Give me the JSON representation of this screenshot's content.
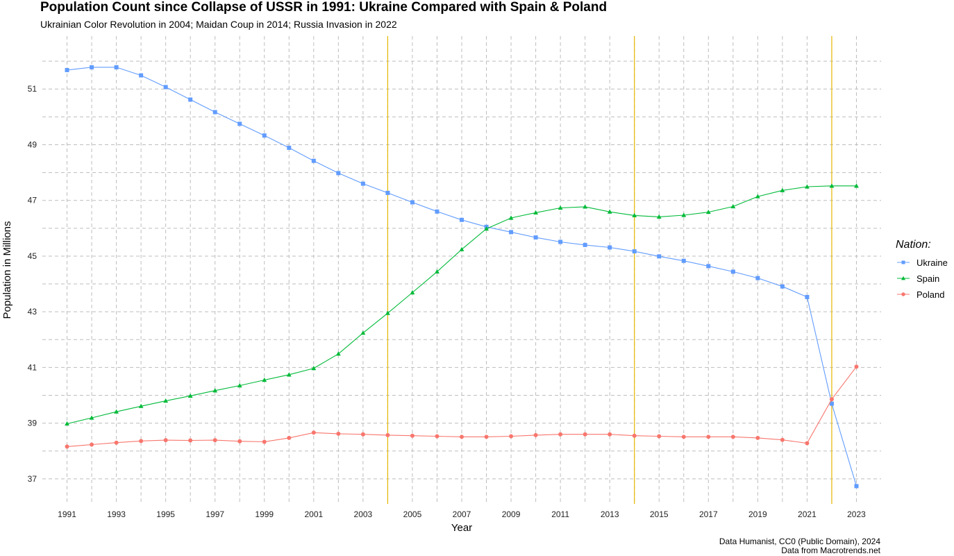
{
  "chart_data": {
    "type": "line",
    "title": "Population Count since Collapse of USSR in 1991: Ukraine Compared with Spain & Poland",
    "subtitle": "Ukrainian Color Revolution in 2004; Maidan Coup in 2014; Russia Invasion in 2022",
    "xlabel": "Year",
    "ylabel": "Population in Millions",
    "x": [
      1991,
      1992,
      1993,
      1994,
      1995,
      1996,
      1997,
      1998,
      1999,
      2000,
      2001,
      2002,
      2003,
      2004,
      2005,
      2006,
      2007,
      2008,
      2009,
      2010,
      2011,
      2012,
      2013,
      2014,
      2015,
      2016,
      2017,
      2018,
      2019,
      2020,
      2021,
      2022,
      2023
    ],
    "x_ticks": [
      1991,
      1993,
      1995,
      1997,
      1999,
      2001,
      2003,
      2005,
      2007,
      2009,
      2011,
      2013,
      2015,
      2017,
      2019,
      2021,
      2023
    ],
    "y_ticks": [
      37,
      39,
      41,
      43,
      45,
      47,
      49,
      51
    ],
    "xlim": [
      1990,
      2024
    ],
    "ylim": [
      36.1,
      52.9
    ],
    "grid": true,
    "legend_title": "Nation:",
    "legend_position": "right",
    "series": [
      {
        "name": "Ukraine",
        "color": "#619CFF",
        "marker": "square",
        "values": [
          51.68,
          51.78,
          51.78,
          51.49,
          51.07,
          50.62,
          50.17,
          49.75,
          49.33,
          48.89,
          48.42,
          47.98,
          47.6,
          47.27,
          46.93,
          46.6,
          46.3,
          46.05,
          45.86,
          45.67,
          45.51,
          45.4,
          45.31,
          45.17,
          44.99,
          44.83,
          44.64,
          44.44,
          44.21,
          43.91,
          43.53,
          39.7,
          36.74
        ]
      },
      {
        "name": "Spain",
        "color": "#00BA38",
        "marker": "triangle",
        "values": [
          38.98,
          39.19,
          39.41,
          39.61,
          39.8,
          39.98,
          40.17,
          40.35,
          40.55,
          40.74,
          40.97,
          41.49,
          42.24,
          42.95,
          43.69,
          44.44,
          45.24,
          45.98,
          46.37,
          46.56,
          46.73,
          46.77,
          46.59,
          46.46,
          46.41,
          46.47,
          46.58,
          46.78,
          47.14,
          47.36,
          47.49,
          47.52,
          47.52
        ]
      },
      {
        "name": "Poland",
        "color": "#F8766D",
        "marker": "circle",
        "values": [
          38.16,
          38.23,
          38.3,
          38.36,
          38.39,
          38.38,
          38.39,
          38.35,
          38.33,
          38.47,
          38.66,
          38.62,
          38.6,
          38.57,
          38.55,
          38.53,
          38.51,
          38.51,
          38.53,
          38.57,
          38.6,
          38.6,
          38.6,
          38.55,
          38.53,
          38.51,
          38.51,
          38.51,
          38.47,
          38.4,
          38.28,
          39.86,
          41.03
        ]
      }
    ],
    "vertical_lines": {
      "color": "#E6B800",
      "x": [
        2004,
        2014,
        2022
      ]
    },
    "caption": [
      "Data Humanist, CC0 (Public Domain), 2024",
      "Data from Macrotrends.net"
    ]
  }
}
